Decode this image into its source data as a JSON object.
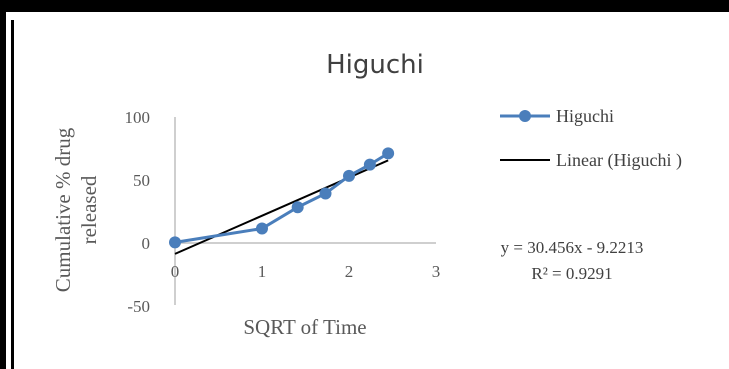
{
  "chart_data": {
    "type": "scatter",
    "title": "Higuchi",
    "xlabel": "SQRT of Time",
    "ylabel_lines": [
      "Cumulative % drug",
      "released"
    ],
    "x_ticks": [
      "0",
      "1",
      "2",
      "3"
    ],
    "y_ticks": [
      "100",
      "50",
      "0",
      "-50"
    ],
    "xlim": [
      0,
      3
    ],
    "ylim": [
      -50,
      100
    ],
    "grid": false,
    "series": [
      {
        "name": "Higuchi",
        "color": "#4a7ebb",
        "marker": "circle",
        "points": [
          {
            "x": 0,
            "y": 0
          },
          {
            "x": 1,
            "y": 11
          },
          {
            "x": 1.41,
            "y": 28
          },
          {
            "x": 1.73,
            "y": 39
          },
          {
            "x": 2.0,
            "y": 53
          },
          {
            "x": 2.24,
            "y": 62
          },
          {
            "x": 2.45,
            "y": 71
          }
        ]
      }
    ],
    "trendline": {
      "name": "Linear (Higuchi )",
      "color": "#000000",
      "slope": 30.456,
      "intercept": -9.2213,
      "x_range": [
        0,
        2.45
      ]
    },
    "legend": {
      "position": "right",
      "entries": [
        "Higuchi",
        "Linear (Higuchi )"
      ]
    },
    "equation": "y = 30.456x - 9.2213",
    "r_squared": "R² = 0.9291"
  }
}
